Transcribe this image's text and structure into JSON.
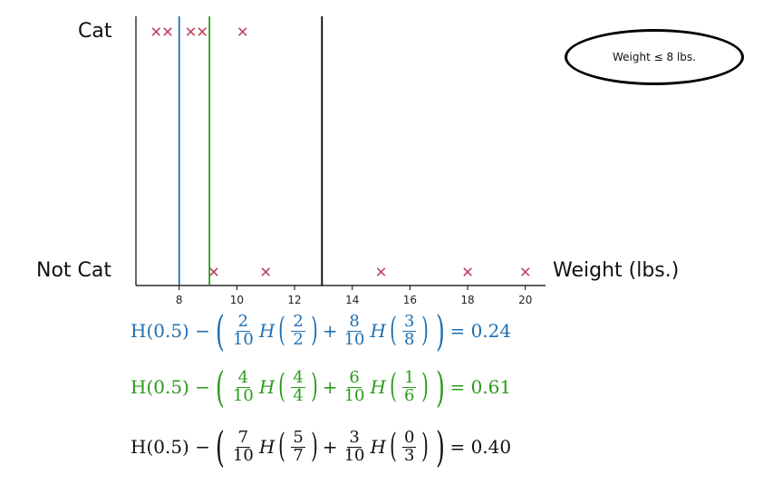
{
  "chart_data": {
    "type": "scatter",
    "categories": [
      "Cat",
      "Not Cat"
    ],
    "xlabel": "Weight (lbs.)",
    "ylabel": "",
    "xlim": [
      6.5,
      20.7
    ],
    "xticks": [
      8,
      10,
      12,
      14,
      16,
      18,
      20
    ],
    "marker": "x",
    "marker_color": "#c0405a",
    "series": [
      {
        "category": "Cat",
        "x": [
          7.2,
          7.6,
          8.4,
          8.8,
          10.2
        ]
      },
      {
        "category": "Not Cat",
        "x": [
          9.2,
          11,
          15,
          18,
          20
        ]
      }
    ],
    "split_lines": [
      {
        "x": 8.0,
        "color": "#1f6fb2"
      },
      {
        "x": 9.05,
        "color": "#2a9a1a"
      },
      {
        "x": 12.95,
        "color": "#000000"
      }
    ],
    "annotation": "Weight ≤ 8 lbs."
  },
  "equations": [
    {
      "color": "#1f6fb2",
      "head": "H(0.5) −",
      "a_num": "2",
      "a_den": "10",
      "a_in_num": "2",
      "a_in_den": "2",
      "plus": "+",
      "b_num": "8",
      "b_den": "10",
      "b_in_num": "3",
      "b_in_den": "8",
      "H": "H",
      "result": "= 0.24"
    },
    {
      "color": "#2a9a1a",
      "head": "H(0.5) −",
      "a_num": "4",
      "a_den": "10",
      "a_in_num": "4",
      "a_in_den": "4",
      "plus": "+",
      "b_num": "6",
      "b_den": "10",
      "b_in_num": "1",
      "b_in_den": "6",
      "H": "H",
      "result": "= 0.61"
    },
    {
      "color": "#111111",
      "head": "H(0.5) −",
      "a_num": "7",
      "a_den": "10",
      "a_in_num": "5",
      "a_in_den": "7",
      "plus": "+",
      "b_num": "3",
      "b_den": "10",
      "b_in_num": "0",
      "b_in_den": "3",
      "H": "H",
      "result": "= 0.40"
    }
  ]
}
